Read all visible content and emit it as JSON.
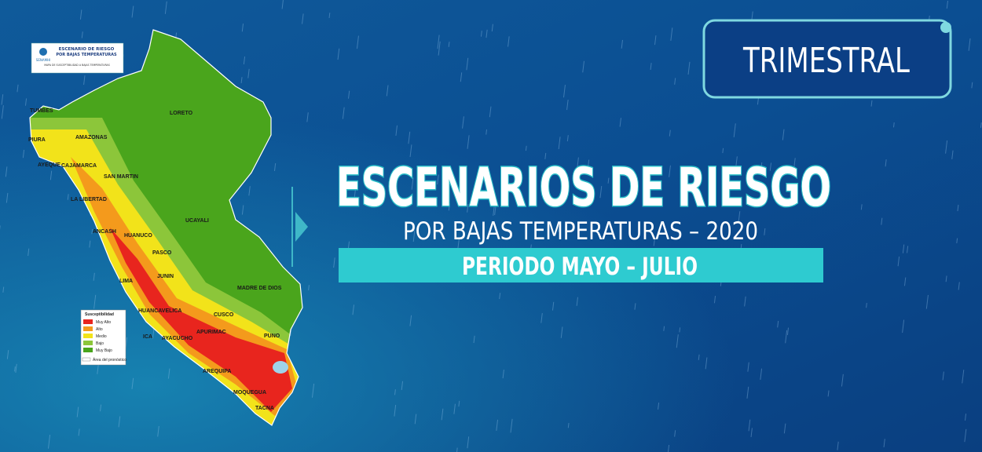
{
  "badge": "TRIMESTRAL",
  "title": "ESCENARIOS DE RIESGO",
  "subtitle": "POR BAJAS TEMPERATURAS – 2020",
  "period": "PERIODO MAYO – JULIO",
  "map": {
    "header": {
      "title": "ESCENARIO DE RIESGO",
      "subtitle": "POR BAJAS TEMPERATURAS",
      "logo": "SENAMHI",
      "caption": "MAPA DE SUSCEPTIBILIDAD A BAJAS TEMPERATURAS"
    },
    "labels": [
      "TUMBES",
      "PIURA",
      "AMAZONAS",
      "LORETO",
      "AYEQUE",
      "CAJAMARCA",
      "SAN MARTIN",
      "LA LIBERTAD",
      "ANCASH",
      "HUANUCO",
      "UCAYALI",
      "PASCO",
      "JUNIN",
      "LIMA",
      "MADRE DE DIOS",
      "HUANCAVELICA",
      "CUSCO",
      "ICA",
      "AYACUCHO",
      "APURIMAC",
      "PUNO",
      "AREQUIPA",
      "MOQUEGUA",
      "TACNA"
    ],
    "legend": {
      "title": "Susceptibilidad",
      "items": [
        "Muy Alto",
        "Alto",
        "Medio",
        "Bajo",
        "Muy Bajo"
      ],
      "area": "Área del pronóstico"
    }
  }
}
